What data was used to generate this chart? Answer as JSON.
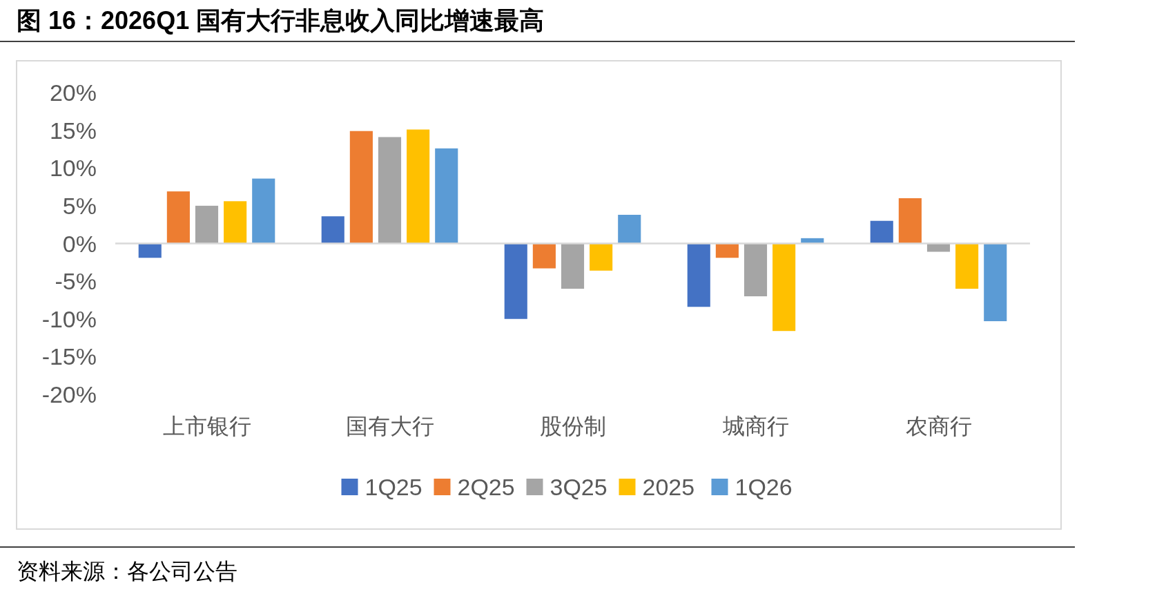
{
  "chart_data": {
    "type": "bar",
    "title": "图 16：2026Q1 国有大行非息收入同比增速最高",
    "categories": [
      "上市银行",
      "国有大行",
      "股份制",
      "城商行",
      "农商行"
    ],
    "series": [
      {
        "name": "1Q25",
        "color": "#4472c4",
        "values": [
          -1.9,
          3.6,
          -10.0,
          -8.4,
          3.0
        ]
      },
      {
        "name": "2Q25",
        "color": "#ed7d31",
        "values": [
          6.9,
          14.9,
          -3.3,
          -1.9,
          6.0
        ]
      },
      {
        "name": "3Q25",
        "color": "#a5a5a5",
        "values": [
          5.0,
          14.1,
          -6.0,
          -7.0,
          -1.1
        ]
      },
      {
        "name": "2025",
        "color": "#ffc000",
        "values": [
          5.6,
          15.1,
          -3.6,
          -11.6,
          -6.0
        ]
      },
      {
        "name": "1Q26",
        "color": "#5b9bd5",
        "values": [
          8.6,
          12.6,
          3.8,
          0.7,
          -10.3
        ]
      }
    ],
    "ylim": [
      -20,
      20
    ],
    "yticks": [
      {
        "value": -20,
        "label": "-20%"
      },
      {
        "value": -15,
        "label": "-15%"
      },
      {
        "value": -10,
        "label": "-10%"
      },
      {
        "value": -5,
        "label": "-5%"
      },
      {
        "value": 0,
        "label": "0%"
      },
      {
        "value": 5,
        "label": "5%"
      },
      {
        "value": 10,
        "label": "10%"
      },
      {
        "value": 15,
        "label": "15%"
      },
      {
        "value": 20,
        "label": "20%"
      }
    ],
    "ref_lines": [
      {
        "axis": "y",
        "value": 0,
        "color": "#d9d9d9"
      }
    ],
    "legend": "bottom",
    "annotations": [
      "资料来源：各公司公告"
    ]
  }
}
